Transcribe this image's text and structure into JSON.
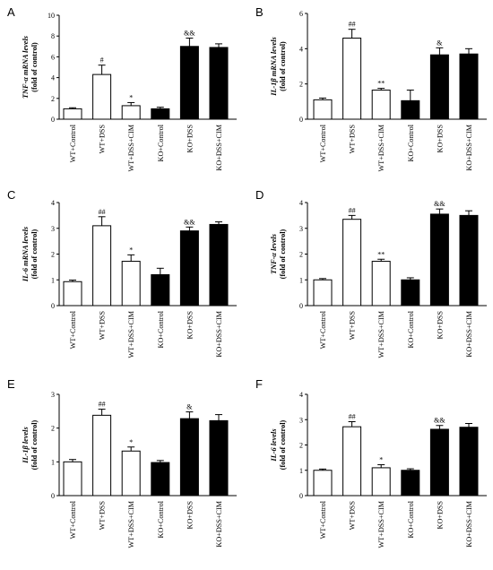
{
  "categories": [
    "WT+Control",
    "WT+DSS",
    "WT+DSS+CIM",
    "KO+Control",
    "KO+DSS",
    "KO+DSS+CIM"
  ],
  "colors": {
    "wt_fill": "#ffffff",
    "ko_fill": "#000000",
    "axis": "#000000"
  },
  "chart_data": [
    {
      "panel": "A",
      "type": "bar",
      "ylabel_line1": "TNF-α  mRNA levels",
      "ylabel_line2": "(fold of control)",
      "ylim": [
        0,
        10
      ],
      "yticks": [
        0,
        2,
        4,
        6,
        8,
        10
      ],
      "values": [
        1.0,
        4.3,
        1.3,
        1.0,
        7.0,
        6.9
      ],
      "errors": [
        0.1,
        0.9,
        0.3,
        0.15,
        0.8,
        0.35
      ],
      "annotations": [
        "",
        "#",
        "*",
        "",
        "&&",
        ""
      ]
    },
    {
      "panel": "B",
      "type": "bar",
      "ylabel_line1": "IL-1β  mRNA levels",
      "ylabel_line2": "(fold of control)",
      "ylim": [
        0,
        6
      ],
      "yticks": [
        0,
        2,
        4,
        6
      ],
      "values": [
        1.1,
        4.6,
        1.65,
        1.05,
        3.65,
        3.7
      ],
      "errors": [
        0.1,
        0.5,
        0.1,
        0.6,
        0.4,
        0.3
      ],
      "annotations": [
        "",
        "##",
        "**",
        "",
        "&",
        ""
      ]
    },
    {
      "panel": "C",
      "type": "bar",
      "ylabel_line1": "IL-6  mRNA levels",
      "ylabel_line2": "(fold of control)",
      "ylim": [
        0,
        4
      ],
      "yticks": [
        0,
        1,
        2,
        3,
        4
      ],
      "values": [
        0.93,
        3.1,
        1.72,
        1.2,
        2.9,
        3.15
      ],
      "errors": [
        0.06,
        0.35,
        0.25,
        0.25,
        0.15,
        0.1
      ],
      "annotations": [
        "",
        "##",
        "*",
        "",
        "&&",
        ""
      ]
    },
    {
      "panel": "D",
      "type": "bar",
      "ylabel_line1": "TNF-α  levels",
      "ylabel_line2": "(fold of control)",
      "ylim": [
        0,
        4
      ],
      "yticks": [
        0,
        1,
        2,
        3,
        4
      ],
      "values": [
        1.0,
        3.35,
        1.72,
        1.0,
        3.55,
        3.5
      ],
      "errors": [
        0.05,
        0.15,
        0.08,
        0.08,
        0.2,
        0.18
      ],
      "annotations": [
        "",
        "##",
        "**",
        "",
        "&&",
        ""
      ]
    },
    {
      "panel": "E",
      "type": "bar",
      "ylabel_line1": "IL-1β  levels",
      "ylabel_line2": "(fold of control)",
      "ylim": [
        0,
        3
      ],
      "yticks": [
        0,
        1,
        2,
        3
      ],
      "values": [
        1.0,
        2.38,
        1.32,
        0.98,
        2.28,
        2.22
      ],
      "errors": [
        0.07,
        0.18,
        0.12,
        0.06,
        0.2,
        0.18
      ],
      "annotations": [
        "",
        "##",
        "*",
        "",
        "&",
        ""
      ]
    },
    {
      "panel": "F",
      "type": "bar",
      "ylabel_line1": "IL-6 levels",
      "ylabel_line2": "(fold of control)",
      "ylim": [
        0,
        4
      ],
      "yticks": [
        0,
        1,
        2,
        3,
        4
      ],
      "values": [
        1.0,
        2.72,
        1.1,
        1.0,
        2.62,
        2.7
      ],
      "errors": [
        0.05,
        0.2,
        0.12,
        0.06,
        0.15,
        0.15
      ],
      "annotations": [
        "",
        "##",
        "*",
        "",
        "&&",
        ""
      ]
    }
  ]
}
